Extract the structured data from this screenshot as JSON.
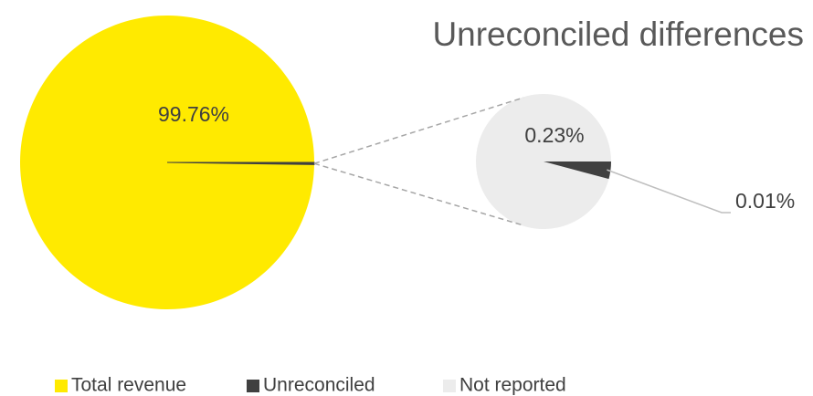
{
  "chart_data": {
    "type": "pie-of-pie",
    "title": "Unreconciled  differences",
    "categories": [
      "Total revenue",
      "Unreconciled",
      "Not reported"
    ],
    "values": [
      99.76,
      0.01,
      0.23
    ],
    "value_labels": [
      "99.76%",
      "0.01%",
      "0.23%"
    ],
    "colors": [
      "#ffea00",
      "#404040",
      "#ececec"
    ],
    "legend": "bottom"
  }
}
